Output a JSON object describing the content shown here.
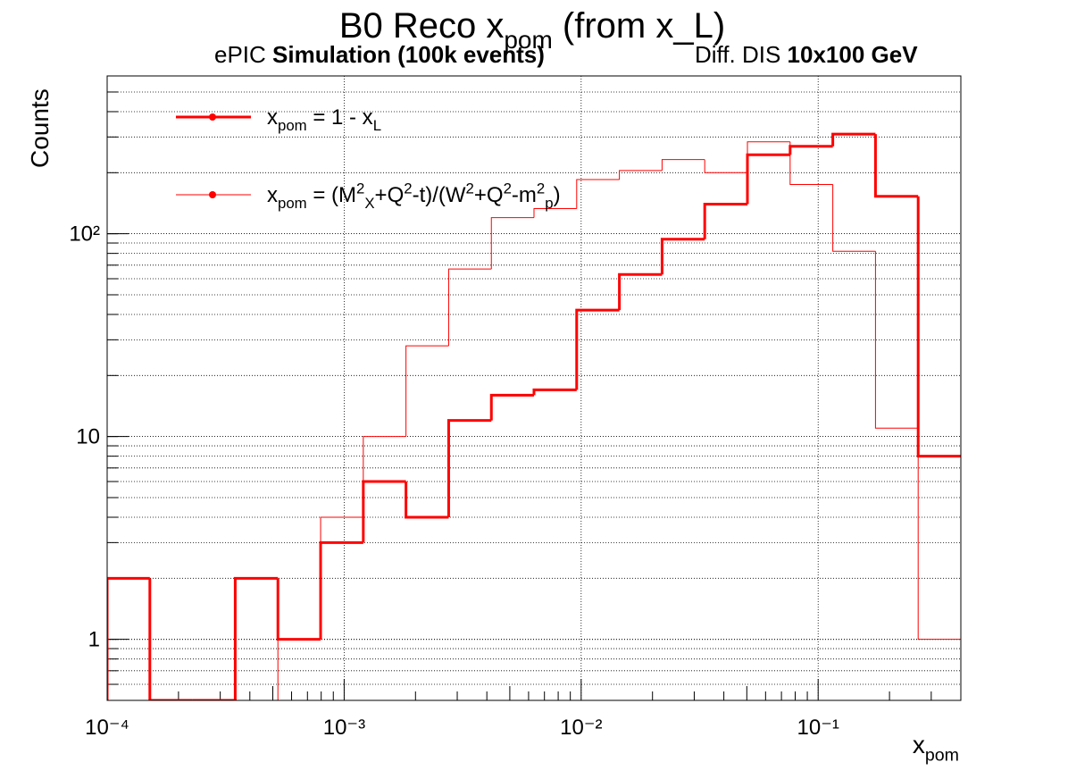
{
  "chart_data": {
    "type": "histogram",
    "title": [
      {
        "t": "B0 Reco x"
      },
      {
        "t": "pom",
        "style": "sub"
      },
      {
        "t": " (from x_L)"
      }
    ],
    "subtitle_left": [
      {
        "t": "ePIC "
      },
      {
        "t": "Simulation (100k events)",
        "style": "bold"
      }
    ],
    "subtitle_right": [
      {
        "t": "Diff. DIS "
      },
      {
        "t": "10x100 GeV",
        "style": "bold"
      }
    ],
    "x_label": [
      {
        "t": "x"
      },
      {
        "t": "pom",
        "style": "sub"
      }
    ],
    "y_label": [
      {
        "t": "Counts"
      }
    ],
    "bins": [
      0.0001,
      0.0001514,
      0.0002292,
      0.000347,
      0.0005254,
      0.0007955,
      0.0012044,
      0.0018234,
      0.0027606,
      0.0041796,
      0.006324,
      0.009574,
      0.014496,
      0.021948,
      0.03322,
      0.0503,
      0.07616,
      0.1153,
      0.17454,
      0.26423,
      0.4
    ],
    "series": [
      {
        "name": [
          {
            "t": "x"
          },
          {
            "t": "pom",
            "style": "sub"
          },
          {
            "t": " = 1 - x"
          },
          {
            "t": "L",
            "style": "sub"
          }
        ],
        "color": "#ff0000",
        "width": 3,
        "values": [
          2,
          0,
          0,
          2,
          1,
          3,
          6,
          4,
          12,
          16,
          17,
          42,
          63,
          94,
          140,
          245,
          270,
          310,
          153,
          8
        ]
      },
      {
        "name": [
          {
            "t": "x"
          },
          {
            "t": "pom",
            "style": "sub"
          },
          {
            "t": " = (M"
          },
          {
            "t": "2",
            "style": "sup"
          },
          {
            "t": "X",
            "style": "sub"
          },
          {
            "t": "+Q"
          },
          {
            "t": "2",
            "style": "sup"
          },
          {
            "t": "-t)/(W"
          },
          {
            "t": "2",
            "style": "sup"
          },
          {
            "t": "+Q"
          },
          {
            "t": "2",
            "style": "sup"
          },
          {
            "t": "-m"
          },
          {
            "t": "2",
            "style": "sup"
          },
          {
            "t": "p",
            "style": "sub"
          },
          {
            "t": ")"
          }
        ],
        "color": "#ff0000",
        "width": 1,
        "values": [
          0,
          0,
          0,
          0,
          1,
          4,
          10,
          28,
          67,
          120,
          133,
          185,
          205,
          232,
          200,
          284,
          175,
          82,
          11,
          1
        ]
      }
    ],
    "xlim": [
      0.0001,
      0.4
    ],
    "ylim": [
      0.5,
      600
    ],
    "xticks": [
      {
        "value": 0.0001,
        "label": "10⁻⁴"
      },
      {
        "value": 0.001,
        "label": "10⁻³"
      },
      {
        "value": 0.01,
        "label": "10⁻²"
      },
      {
        "value": 0.1,
        "label": "10⁻¹"
      }
    ],
    "yticks": [
      1,
      10,
      {
        "value": 100,
        "label": "10²"
      }
    ],
    "xlog": true,
    "ylog": true,
    "grid": true,
    "legend": "upper left"
  }
}
